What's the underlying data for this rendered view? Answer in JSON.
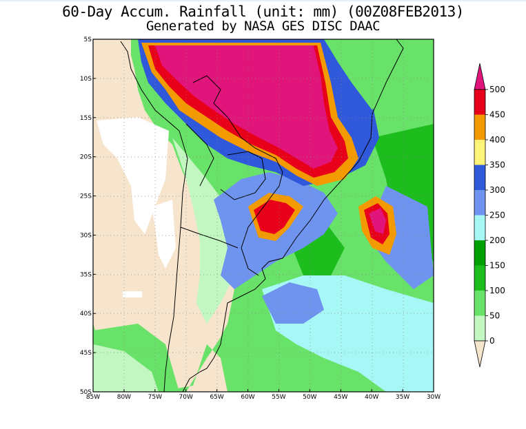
{
  "title": "60-Day Accum. Rainfall (unit: mm) (00Z08FEB2013)",
  "subtitle": "Generated by NASA GES DISC DAAC",
  "map": {
    "lon_range": [
      -85,
      -30
    ],
    "lat_range": [
      -50,
      -5
    ],
    "lon_ticks": [
      "85W",
      "80W",
      "75W",
      "70W",
      "65W",
      "60W",
      "55W",
      "50W",
      "45W",
      "40W",
      "35W",
      "30W"
    ],
    "lat_ticks": [
      "5S",
      "10S",
      "15S",
      "20S",
      "25S",
      "30S",
      "35S",
      "40S",
      "45S",
      "50S"
    ],
    "grid": "dotted"
  },
  "legend": {
    "unit": "mm",
    "labels": [
      "0",
      "50",
      "100",
      "150",
      "200",
      "250",
      "300",
      "350",
      "400",
      "450",
      "500"
    ],
    "colors": [
      "#f6e4cc",
      "#c2f7c2",
      "#68e268",
      "#1cbd1c",
      "#00a000",
      "#a8f7f7",
      "#6e94f0",
      "#3058da",
      "#fff47a",
      "#f39a00",
      "#e8001a",
      "#e0147a"
    ]
  }
}
